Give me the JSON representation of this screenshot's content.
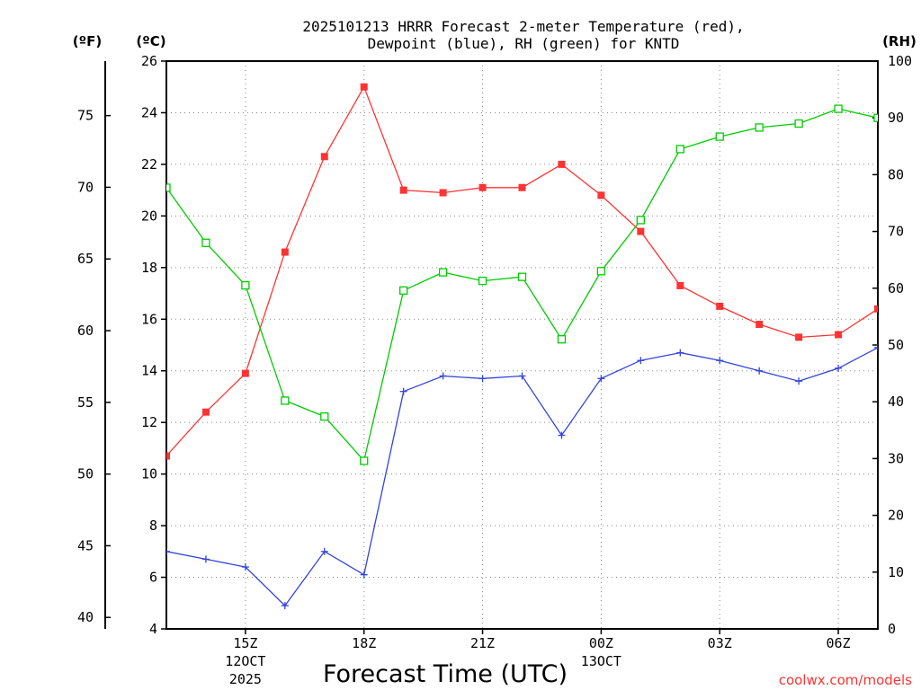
{
  "chart_data": {
    "type": "line",
    "title": "2025101213 HRRR Forecast 2-meter Temperature (red),",
    "title_line2": "Dewpoint (blue), RH (green) for KNTD",
    "xlabel": "Forecast Time (UTC)",
    "credit": "coolwx.com/models",
    "units": {
      "fahrenheit": "(ºF)",
      "celsius": "(ºC)",
      "rh": "(RH)"
    },
    "x": [
      13,
      14,
      15,
      16,
      17,
      18,
      19,
      20,
      21,
      22,
      23,
      24,
      25,
      26,
      27,
      28,
      29,
      30,
      31
    ],
    "x_range": [
      13,
      31
    ],
    "x_ticks": [
      {
        "value": 15,
        "label": "15Z",
        "date": "12OCT",
        "year": "2025"
      },
      {
        "value": 18,
        "label": "18Z"
      },
      {
        "value": 21,
        "label": "21Z"
      },
      {
        "value": 24,
        "label": "00Z",
        "date": "13OCT"
      },
      {
        "value": 27,
        "label": "03Z"
      },
      {
        "value": 30,
        "label": "06Z"
      }
    ],
    "y_celsius_range": [
      4,
      26
    ],
    "y_celsius_ticks": [
      4,
      6,
      8,
      10,
      12,
      14,
      16,
      18,
      20,
      22,
      24,
      26
    ],
    "y_fahrenheit_ticks": [
      40,
      45,
      50,
      55,
      60,
      65,
      70,
      75
    ],
    "y_rh_range": [
      0,
      100
    ],
    "y_rh_ticks": [
      0,
      10,
      20,
      30,
      40,
      50,
      60,
      70,
      80,
      90,
      100
    ],
    "grid": true,
    "series": [
      {
        "name": "Temperature",
        "color": "#ff3333",
        "marker": "filled-square",
        "axis": "celsius",
        "values": [
          10.7,
          12.4,
          13.9,
          18.6,
          22.3,
          25.0,
          21.0,
          20.9,
          21.1,
          21.1,
          22.0,
          20.8,
          19.4,
          17.3,
          16.5,
          15.8,
          15.3,
          15.4,
          16.4
        ]
      },
      {
        "name": "Dewpoint",
        "color": "#3344dd",
        "marker": "plus",
        "axis": "celsius",
        "values": [
          7.0,
          6.7,
          6.4,
          4.9,
          7.0,
          6.1,
          13.2,
          13.8,
          13.7,
          13.8,
          11.5,
          13.7,
          14.4,
          14.7,
          14.4,
          14.0,
          13.6,
          14.1,
          14.9
        ]
      },
      {
        "name": "RH",
        "color": "#00cc00",
        "marker": "open-square",
        "axis": "rh",
        "values": [
          77.7,
          68.0,
          60.5,
          40.2,
          37.4,
          29.6,
          59.6,
          62.8,
          61.3,
          62.0,
          51.0,
          63.0,
          72.0,
          84.5,
          86.7,
          88.3,
          89.0,
          91.6,
          90.0
        ]
      }
    ]
  }
}
